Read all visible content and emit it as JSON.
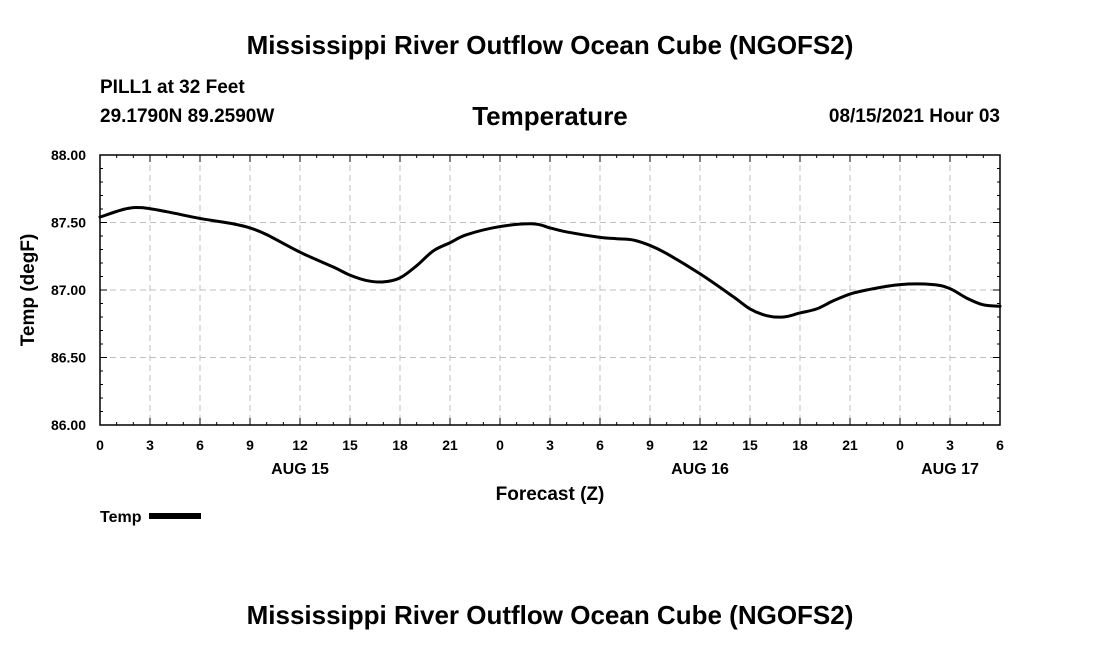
{
  "header": {
    "title": "Mississippi River Outflow Ocean Cube (NGOFS2)",
    "station": "PILL1 at 32 Feet",
    "coordinates": "29.1790N  89.2590W",
    "subtitle": "Temperature",
    "datetime": "08/15/2021 Hour 03"
  },
  "footer": {
    "title": "Mississippi River Outflow Ocean Cube (NGOFS2)"
  },
  "legend": {
    "label": "Temp"
  },
  "colors": {
    "line": "#000000",
    "grid": "#bfbfbf"
  },
  "chart_data": {
    "type": "line",
    "title": "Temperature",
    "xlabel": "Forecast (Z)",
    "ylabel": "Temp (degF)",
    "grid": true,
    "legend": "bottom-left",
    "xlim": [
      0,
      54
    ],
    "ylim": [
      86.0,
      88.0
    ],
    "x_ticks": [
      0,
      3,
      6,
      9,
      12,
      15,
      18,
      21,
      24,
      27,
      30,
      33,
      36,
      39,
      42,
      45,
      48,
      51,
      54
    ],
    "x_tick_labels": [
      "0",
      "3",
      "6",
      "9",
      "12",
      "15",
      "18",
      "21",
      "0",
      "3",
      "6",
      "9",
      "12",
      "15",
      "18",
      "21",
      "0",
      "3",
      "6"
    ],
    "day_labels": [
      {
        "x": 12,
        "label": "AUG 15"
      },
      {
        "x": 36,
        "label": "AUG 16"
      },
      {
        "x": 51,
        "label": "AUG 17"
      }
    ],
    "y_ticks": [
      86.0,
      86.5,
      87.0,
      87.5,
      88.0
    ],
    "y_tick_labels": [
      "86.00",
      "86.50",
      "87.00",
      "87.50",
      "88.00"
    ],
    "series": [
      {
        "name": "Temp",
        "x": [
          0,
          1.5,
          2.5,
          4,
          6,
          8,
          9,
          10,
          12,
          14,
          15,
          16,
          17,
          18,
          19,
          20,
          21,
          22,
          24,
          26,
          27,
          28,
          30,
          31,
          32,
          33,
          34,
          36,
          38,
          39,
          40,
          41,
          42,
          43,
          44,
          45,
          46,
          48,
          50,
          51,
          52,
          53,
          54
        ],
        "values": [
          87.54,
          87.6,
          87.61,
          87.58,
          87.53,
          87.49,
          87.46,
          87.41,
          87.28,
          87.17,
          87.11,
          87.07,
          87.06,
          87.09,
          87.18,
          87.29,
          87.35,
          87.41,
          87.47,
          87.49,
          87.46,
          87.43,
          87.39,
          87.38,
          87.37,
          87.33,
          87.27,
          87.12,
          86.95,
          86.86,
          86.81,
          86.8,
          86.83,
          86.86,
          86.92,
          86.97,
          87.0,
          87.04,
          87.04,
          87.01,
          86.94,
          86.89,
          86.88
        ]
      }
    ]
  }
}
